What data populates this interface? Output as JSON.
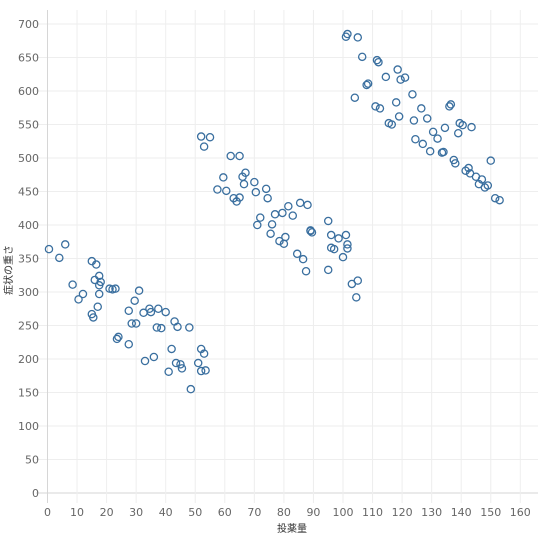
{
  "chart_data": {
    "type": "scatter",
    "title": "",
    "xlabel": "投薬量",
    "ylabel": "症状の重さ",
    "xlim": [
      0,
      160
    ],
    "ylim": [
      0,
      700
    ],
    "xticks": [
      0,
      10,
      20,
      30,
      40,
      50,
      60,
      70,
      80,
      90,
      100,
      110,
      120,
      130,
      140,
      150,
      160
    ],
    "yticks": [
      0,
      50,
      100,
      150,
      200,
      250,
      300,
      350,
      400,
      450,
      500,
      550,
      600,
      650,
      700
    ],
    "grid": true,
    "marker_color": "#3a6f9f",
    "marker": "hollow-circle",
    "points": [
      [
        0.5,
        364
      ],
      [
        4,
        351
      ],
      [
        6,
        371
      ],
      [
        8.5,
        311
      ],
      [
        10.5,
        289
      ],
      [
        12,
        297
      ],
      [
        15,
        346
      ],
      [
        16.5,
        341
      ],
      [
        16,
        318
      ],
      [
        17.5,
        324
      ],
      [
        17.5,
        310
      ],
      [
        17.5,
        297
      ],
      [
        18,
        315
      ],
      [
        15,
        267
      ],
      [
        15.5,
        262
      ],
      [
        17,
        278
      ],
      [
        21,
        305
      ],
      [
        22,
        304
      ],
      [
        23,
        305
      ],
      [
        23.5,
        230
      ],
      [
        24,
        233
      ],
      [
        27.5,
        272
      ],
      [
        28.5,
        253
      ],
      [
        29.5,
        287
      ],
      [
        30,
        253
      ],
      [
        31,
        302
      ],
      [
        32.5,
        269
      ],
      [
        33,
        197
      ],
      [
        34.5,
        275
      ],
      [
        35,
        270
      ],
      [
        36,
        203
      ],
      [
        37,
        247
      ],
      [
        37.5,
        275
      ],
      [
        38.5,
        246
      ],
      [
        40,
        270
      ],
      [
        41,
        181
      ],
      [
        42,
        215
      ],
      [
        43,
        256
      ],
      [
        43.5,
        194
      ],
      [
        44,
        248
      ],
      [
        45,
        192
      ],
      [
        45.5,
        186
      ],
      [
        48,
        247
      ],
      [
        48.5,
        155
      ],
      [
        51,
        194
      ],
      [
        52,
        215
      ],
      [
        52,
        182
      ],
      [
        53,
        208
      ],
      [
        53.5,
        183
      ],
      [
        27.5,
        222
      ],
      [
        52,
        532
      ],
      [
        53,
        517
      ],
      [
        55,
        531
      ],
      [
        57.5,
        453
      ],
      [
        59.5,
        471
      ],
      [
        60.5,
        451
      ],
      [
        62,
        503
      ],
      [
        63,
        440
      ],
      [
        64,
        435
      ],
      [
        65,
        503
      ],
      [
        65,
        441
      ],
      [
        66,
        472
      ],
      [
        66.5,
        461
      ],
      [
        67,
        478
      ],
      [
        70,
        464
      ],
      [
        70.5,
        449
      ],
      [
        71,
        400
      ],
      [
        72,
        411
      ],
      [
        74,
        454
      ],
      [
        74.5,
        440
      ],
      [
        75.5,
        387
      ],
      [
        76,
        401
      ],
      [
        77,
        416
      ],
      [
        78.5,
        376
      ],
      [
        79.5,
        418
      ],
      [
        80,
        372
      ],
      [
        80.5,
        382
      ],
      [
        81.5,
        428
      ],
      [
        83,
        414
      ],
      [
        84.5,
        357
      ],
      [
        85.5,
        433
      ],
      [
        86.5,
        349
      ],
      [
        87.5,
        331
      ],
      [
        88,
        430
      ],
      [
        89,
        392
      ],
      [
        89.5,
        389
      ],
      [
        95,
        406
      ],
      [
        95,
        333
      ],
      [
        96,
        385
      ],
      [
        96,
        366
      ],
      [
        97,
        364
      ],
      [
        98.5,
        380
      ],
      [
        100,
        352
      ],
      [
        101,
        385
      ],
      [
        101.5,
        371
      ],
      [
        101.5,
        365
      ],
      [
        103,
        312
      ],
      [
        104.5,
        292
      ],
      [
        105,
        317
      ],
      [
        89,
        391
      ],
      [
        101,
        681
      ],
      [
        101.5,
        685
      ],
      [
        104,
        590
      ],
      [
        105,
        680
      ],
      [
        106.5,
        651
      ],
      [
        108,
        609
      ],
      [
        108.5,
        611
      ],
      [
        111,
        577
      ],
      [
        111.5,
        646
      ],
      [
        112,
        643
      ],
      [
        112.5,
        574
      ],
      [
        114.5,
        621
      ],
      [
        115.5,
        552
      ],
      [
        116.5,
        550
      ],
      [
        118,
        583
      ],
      [
        118.5,
        632
      ],
      [
        119,
        562
      ],
      [
        119.5,
        617
      ],
      [
        121,
        620
      ],
      [
        123.5,
        595
      ],
      [
        124,
        556
      ],
      [
        124.5,
        528
      ],
      [
        126.5,
        574
      ],
      [
        127,
        521
      ],
      [
        128.5,
        559
      ],
      [
        129.5,
        510
      ],
      [
        130.5,
        539
      ],
      [
        132,
        529
      ],
      [
        133.5,
        508
      ],
      [
        134,
        509
      ],
      [
        134.5,
        545
      ],
      [
        136,
        577
      ],
      [
        136.5,
        580
      ],
      [
        137.5,
        497
      ],
      [
        138,
        492
      ],
      [
        139,
        537
      ],
      [
        139.5,
        552
      ],
      [
        140.5,
        549
      ],
      [
        141.5,
        481
      ],
      [
        142.5,
        485
      ],
      [
        143,
        477
      ],
      [
        143.5,
        546
      ],
      [
        145,
        472
      ],
      [
        146,
        461
      ],
      [
        147,
        468
      ],
      [
        148,
        456
      ],
      [
        149,
        459
      ],
      [
        150,
        496
      ],
      [
        151.5,
        440
      ],
      [
        153,
        437
      ]
    ]
  }
}
